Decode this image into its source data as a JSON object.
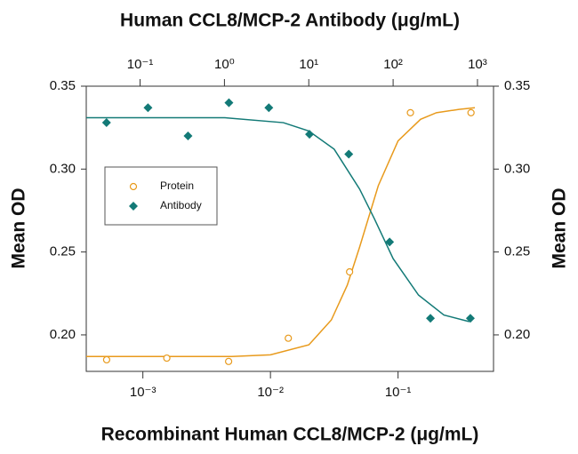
{
  "chart_data": {
    "type": "scatter",
    "title": "Human CCL8/MCP-2 Antibody (μg/mL)",
    "xlabel": "Recombinant Human CCL8/MCP-2 (μg/mL)",
    "ylabel": "Mean OD",
    "xscale": "log",
    "xlim": [
      0.00036,
      0.56
    ],
    "xticks": [
      {
        "value": 0.001,
        "label": "10⁻³"
      },
      {
        "value": 0.01,
        "label": "10⁻²"
      },
      {
        "value": 0.1,
        "label": "10⁻¹"
      }
    ],
    "x2lim": [
      0.023,
      1550
    ],
    "x2ticks": [
      {
        "value": 0.1,
        "label": "10⁻¹"
      },
      {
        "value": 1,
        "label": "10⁰"
      },
      {
        "value": 10,
        "label": "10¹"
      },
      {
        "value": 100,
        "label": "10²"
      },
      {
        "value": 1000,
        "label": "10³"
      }
    ],
    "ylim": [
      0.178,
      0.35
    ],
    "yticks": [
      {
        "value": 0.2,
        "label": "0.20"
      },
      0.25,
      {
        "value": 0.3,
        "label": "0.30"
      },
      0.35
    ],
    "legend": "upper left",
    "series": [
      {
        "name": "Protein",
        "color": "#e89a1c",
        "marker": "open-circle",
        "axis": "x",
        "x": [
          0.00052,
          0.00154,
          0.0047,
          0.0138,
          0.0417,
          0.125,
          0.373
        ],
        "values": [
          0.185,
          0.186,
          0.184,
          0.198,
          0.238,
          0.334,
          0.334
        ],
        "fit": {
          "x": [
            0.00036,
            0.005,
            0.01,
            0.02,
            0.03,
            0.04,
            0.05,
            0.07,
            0.1,
            0.15,
            0.2,
            0.3,
            0.4
          ],
          "values": [
            0.187,
            0.187,
            0.188,
            0.194,
            0.209,
            0.23,
            0.253,
            0.29,
            0.317,
            0.33,
            0.334,
            0.336,
            0.337
          ]
        }
      },
      {
        "name": "Antibody",
        "color": "#137a77",
        "marker": "diamond",
        "axis": "x2",
        "x": [
          0.04,
          0.124,
          0.37,
          1.13,
          3.36,
          10.2,
          29.8,
          90.8,
          277,
          824
        ],
        "values": [
          0.328,
          0.337,
          0.32,
          0.34,
          0.337,
          0.321,
          0.309,
          0.256,
          0.21,
          0.21
        ],
        "fit": {
          "x": [
            0.023,
            1,
            5,
            10,
            20,
            40,
            60,
            100,
            200,
            400,
            800
          ],
          "values": [
            0.331,
            0.331,
            0.328,
            0.323,
            0.312,
            0.288,
            0.27,
            0.246,
            0.224,
            0.212,
            0.208
          ]
        }
      }
    ]
  }
}
